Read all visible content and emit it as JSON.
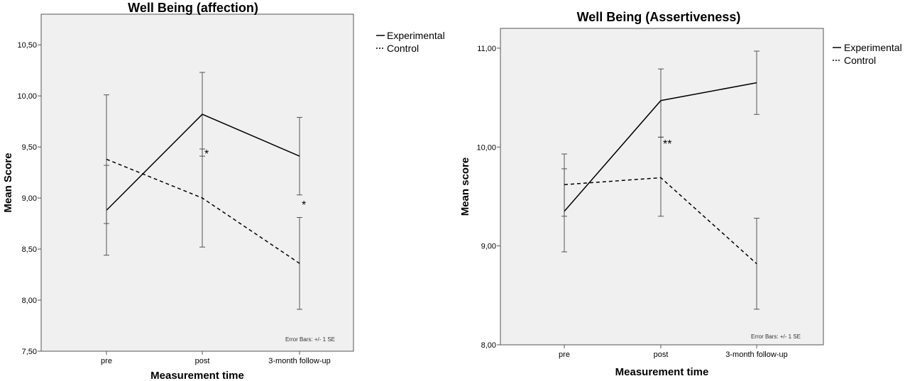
{
  "chart_data": [
    {
      "type": "line",
      "title": "Well Being (affection)",
      "xlabel": "Measurement time",
      "ylabel": "Mean Score",
      "categories": [
        "pre",
        "post",
        "3-month follow-up"
      ],
      "ylim": [
        7.5,
        10.8
      ],
      "yticks": [
        7.5,
        8.0,
        8.5,
        9.0,
        9.5,
        10.0,
        10.5
      ],
      "ytick_labels": [
        "7,50",
        "8,00",
        "8,50",
        "9,00",
        "9,50",
        "10,00",
        "10,50"
      ],
      "series": [
        {
          "name": "Experimental",
          "style": "solid",
          "values": [
            8.88,
            9.82,
            9.41
          ],
          "err_low": [
            8.75,
            9.41,
            9.03
          ],
          "err_high": [
            9.32,
            10.23,
            9.79
          ]
        },
        {
          "name": "Control",
          "style": "dashed",
          "values": [
            9.38,
            9.0,
            8.36
          ],
          "err_low": [
            8.44,
            8.52,
            7.91
          ],
          "err_high": [
            10.01,
            9.48,
            8.81
          ]
        }
      ],
      "annotations": [
        {
          "text": "*",
          "category": "post",
          "y": 9.43
        },
        {
          "text": "*",
          "category": "3-month follow-up",
          "y": 8.93
        }
      ],
      "note": "Error Bars: +/- 1 SE",
      "legend": [
        "Experimental",
        "Control"
      ],
      "grid": false
    },
    {
      "type": "line",
      "title": "Well Being (Assertiveness)",
      "xlabel": "Measurement time",
      "ylabel": "Mean score",
      "categories": [
        "pre",
        "post",
        "3-month follow-up"
      ],
      "ylim": [
        8.0,
        11.2
      ],
      "yticks": [
        8.0,
        9.0,
        10.0,
        11.0
      ],
      "ytick_labels": [
        "8,00",
        "9,00",
        "10,00",
        "11,00"
      ],
      "series": [
        {
          "name": "Experimental",
          "style": "solid",
          "values": [
            9.35,
            10.47,
            10.65
          ],
          "err_low": [
            8.94,
            10.1,
            10.33
          ],
          "err_high": [
            9.78,
            10.79,
            10.97
          ]
        },
        {
          "name": "Control",
          "style": "dashed",
          "values": [
            9.62,
            9.69,
            8.82
          ],
          "err_low": [
            9.3,
            9.3,
            8.36
          ],
          "err_high": [
            9.93,
            10.1,
            9.28
          ]
        }
      ],
      "annotations": [
        {
          "text": "**",
          "category": "post",
          "y": 10.03
        }
      ],
      "note": "Error Bars: +/- 1 SE",
      "legend": [
        "Experimental",
        "Control"
      ],
      "grid": false
    }
  ]
}
